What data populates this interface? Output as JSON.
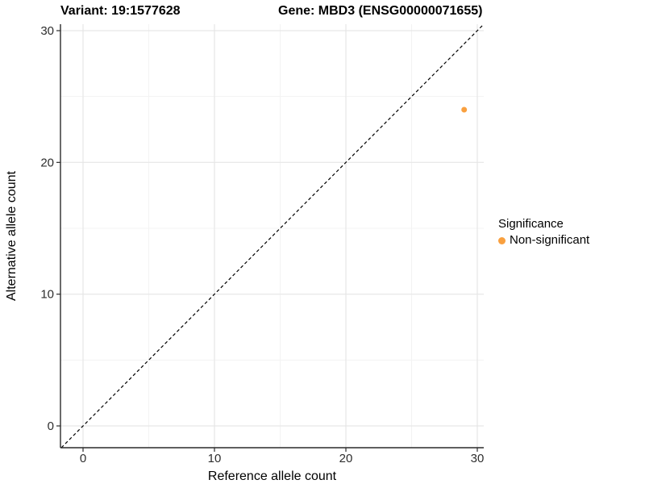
{
  "chart_data": {
    "type": "scatter",
    "title_left": "Variant: 19:1577628",
    "title_right": "Gene: MBD3 (ENSG00000071655)",
    "xlabel": "Reference allele count",
    "ylabel": "Alternative allele count",
    "x_ticks": [
      0,
      10,
      20,
      30
    ],
    "y_ticks": [
      0,
      10,
      20,
      30
    ],
    "x_minor_ticks": [
      5,
      15,
      25
    ],
    "y_minor_ticks": [
      5,
      15,
      25
    ],
    "xlim": [
      -1.7,
      30.5
    ],
    "ylim": [
      -1.7,
      30.5
    ],
    "grid": "major+minor",
    "series": [
      {
        "name": "Non-significant",
        "color": "#F9A03F",
        "points": [
          [
            29,
            24
          ]
        ]
      }
    ],
    "reference_line": {
      "slope": 1,
      "intercept": 0,
      "style": "dashed",
      "color": "#000000"
    },
    "legend": {
      "title": "Significance",
      "position": "right",
      "items": [
        {
          "label": "Non-significant",
          "color": "#F9A03F"
        }
      ]
    }
  },
  "colors": {
    "background": "#FFFFFF",
    "panel_background": "#FFFFFF",
    "grid_major": "#E6E6E6",
    "grid_minor": "#F3F3F3",
    "axis_line": "#2B2B2B",
    "tick_label": "#2E2E2E",
    "text": "#000000"
  }
}
